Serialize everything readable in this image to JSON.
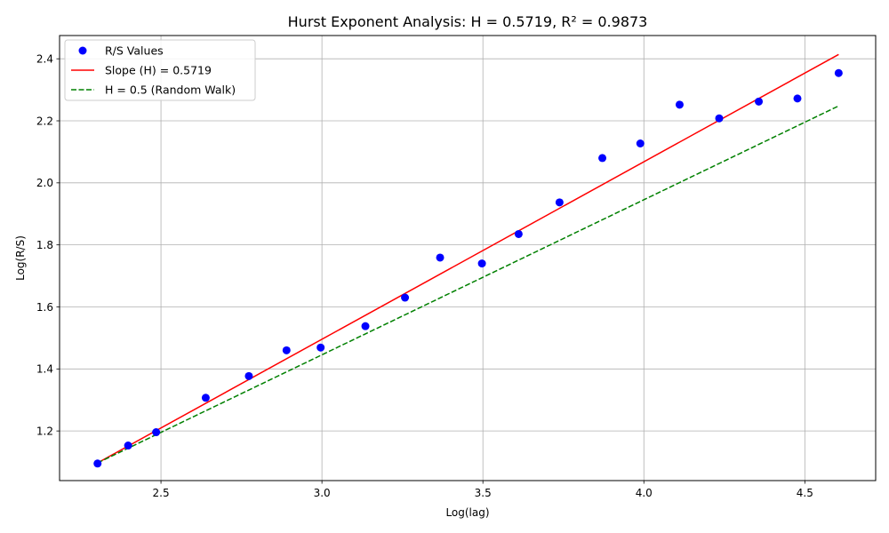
{
  "chart_data": {
    "type": "scatter",
    "title": "Hurst Exponent Analysis: H = 0.5719, R² = 0.9873",
    "xlabel": "Log(lag)",
    "ylabel": "Log(R/S)",
    "xlim": [
      2.185,
      4.72
    ],
    "ylim": [
      1.04,
      2.475
    ],
    "xticks": [
      2.5,
      3.0,
      3.5,
      4.0,
      4.5
    ],
    "xtick_labels": [
      "2.5",
      "3.0",
      "3.5",
      "4.0",
      "4.5"
    ],
    "yticks": [
      1.2,
      1.4,
      1.6,
      1.8,
      2.0,
      2.2,
      2.4
    ],
    "ytick_labels": [
      "1.2",
      "1.4",
      "1.6",
      "1.8",
      "2.0",
      "2.2",
      "2.4"
    ],
    "grid": true,
    "legend_position": "top-left",
    "series": [
      {
        "name": "R/S Values",
        "kind": "scatter",
        "color": "#0000ff",
        "x": [
          2.303,
          2.398,
          2.485,
          2.639,
          2.773,
          2.89,
          2.996,
          3.135,
          3.258,
          3.367,
          3.497,
          3.611,
          3.738,
          3.871,
          3.989,
          4.111,
          4.234,
          4.357,
          4.477,
          4.605
        ],
        "y": [
          1.095,
          1.153,
          1.196,
          1.307,
          1.377,
          1.46,
          1.469,
          1.538,
          1.63,
          1.759,
          1.74,
          1.835,
          1.937,
          2.08,
          2.127,
          2.252,
          2.208,
          2.262,
          2.272,
          2.354
        ]
      },
      {
        "name": "Slope (H) = 0.5719",
        "kind": "line",
        "color": "#ff0000",
        "dash": "solid",
        "x": [
          2.303,
          4.605
        ],
        "y": [
          1.097,
          2.414
        ]
      },
      {
        "name": "H = 0.5 (Random Walk)",
        "kind": "line",
        "color": "#008000",
        "dash": "dashed",
        "x": [
          2.303,
          4.605
        ],
        "y": [
          1.097,
          2.248
        ]
      }
    ]
  }
}
